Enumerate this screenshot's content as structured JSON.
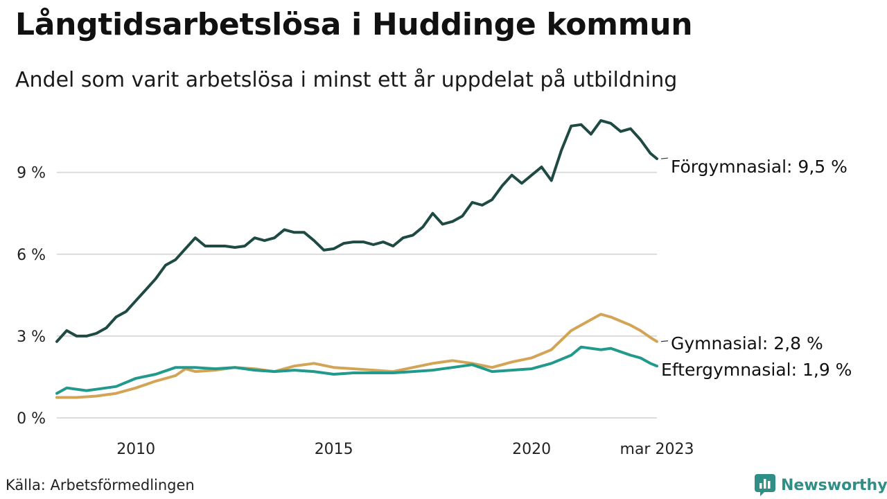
{
  "title": "Långtidsarbetslösa i Huddinge kommun",
  "subtitle": "Andel som varit arbetslösa i minst ett år uppdelat på utbildning",
  "source": "Källa: Arbetsförmedlingen",
  "brand": {
    "name": "Newsworthy",
    "icon": "newsworthy-logo-icon",
    "color": "#2f8f86"
  },
  "chart_data": {
    "type": "line",
    "x_range": [
      "2008-01",
      "2023-03"
    ],
    "ylim": [
      0,
      11
    ],
    "grid": true,
    "yticks": [
      {
        "value": 0,
        "label": "0 %"
      },
      {
        "value": 3,
        "label": "3 %"
      },
      {
        "value": 6,
        "label": "6 %"
      },
      {
        "value": 9,
        "label": "9 %"
      }
    ],
    "xticks": [
      {
        "date": "2010-01",
        "label": "2010"
      },
      {
        "date": "2015-01",
        "label": "2015"
      },
      {
        "date": "2020-01",
        "label": "2020"
      },
      {
        "date": "2023-03",
        "label": "mar 2023"
      }
    ],
    "series": [
      {
        "name": "Förgymnasial",
        "color": "#1f4a44",
        "end_label": "Förgymnasial: 9,5 %",
        "points": [
          [
            "2008-01",
            2.8
          ],
          [
            "2008-04",
            3.2
          ],
          [
            "2008-07",
            3.0
          ],
          [
            "2008-10",
            3.0
          ],
          [
            "2009-01",
            3.1
          ],
          [
            "2009-04",
            3.3
          ],
          [
            "2009-07",
            3.7
          ],
          [
            "2009-10",
            3.9
          ],
          [
            "2010-01",
            4.3
          ],
          [
            "2010-04",
            4.7
          ],
          [
            "2010-07",
            5.1
          ],
          [
            "2010-10",
            5.6
          ],
          [
            "2011-01",
            5.8
          ],
          [
            "2011-04",
            6.2
          ],
          [
            "2011-07",
            6.6
          ],
          [
            "2011-10",
            6.3
          ],
          [
            "2012-01",
            6.3
          ],
          [
            "2012-04",
            6.3
          ],
          [
            "2012-07",
            6.25
          ],
          [
            "2012-10",
            6.3
          ],
          [
            "2013-01",
            6.6
          ],
          [
            "2013-04",
            6.5
          ],
          [
            "2013-07",
            6.6
          ],
          [
            "2013-10",
            6.9
          ],
          [
            "2014-01",
            6.8
          ],
          [
            "2014-04",
            6.8
          ],
          [
            "2014-07",
            6.5
          ],
          [
            "2014-10",
            6.15
          ],
          [
            "2015-01",
            6.2
          ],
          [
            "2015-04",
            6.4
          ],
          [
            "2015-07",
            6.45
          ],
          [
            "2015-10",
            6.45
          ],
          [
            "2016-01",
            6.35
          ],
          [
            "2016-04",
            6.45
          ],
          [
            "2016-07",
            6.3
          ],
          [
            "2016-10",
            6.6
          ],
          [
            "2017-01",
            6.7
          ],
          [
            "2017-04",
            7.0
          ],
          [
            "2017-07",
            7.5
          ],
          [
            "2017-10",
            7.1
          ],
          [
            "2018-01",
            7.2
          ],
          [
            "2018-04",
            7.4
          ],
          [
            "2018-07",
            7.9
          ],
          [
            "2018-10",
            7.8
          ],
          [
            "2019-01",
            8.0
          ],
          [
            "2019-04",
            8.5
          ],
          [
            "2019-07",
            8.9
          ],
          [
            "2019-10",
            8.6
          ],
          [
            "2020-01",
            8.9
          ],
          [
            "2020-04",
            9.2
          ],
          [
            "2020-07",
            8.7
          ],
          [
            "2020-10",
            9.8
          ],
          [
            "2021-01",
            10.7
          ],
          [
            "2021-04",
            10.75
          ],
          [
            "2021-07",
            10.4
          ],
          [
            "2021-10",
            10.9
          ],
          [
            "2022-01",
            10.8
          ],
          [
            "2022-04",
            10.5
          ],
          [
            "2022-07",
            10.6
          ],
          [
            "2022-10",
            10.2
          ],
          [
            "2023-01",
            9.7
          ],
          [
            "2023-03",
            9.5
          ]
        ]
      },
      {
        "name": "Gymnasial",
        "color": "#d4a456",
        "end_label": "Gymnasial: 2,8 %",
        "points": [
          [
            "2008-01",
            0.75
          ],
          [
            "2008-07",
            0.75
          ],
          [
            "2009-01",
            0.8
          ],
          [
            "2009-07",
            0.9
          ],
          [
            "2010-01",
            1.1
          ],
          [
            "2010-07",
            1.35
          ],
          [
            "2011-01",
            1.55
          ],
          [
            "2011-04",
            1.8
          ],
          [
            "2011-07",
            1.7
          ],
          [
            "2012-01",
            1.75
          ],
          [
            "2012-07",
            1.85
          ],
          [
            "2013-01",
            1.8
          ],
          [
            "2013-07",
            1.7
          ],
          [
            "2014-01",
            1.9
          ],
          [
            "2014-07",
            2.0
          ],
          [
            "2015-01",
            1.85
          ],
          [
            "2015-07",
            1.8
          ],
          [
            "2016-01",
            1.75
          ],
          [
            "2016-07",
            1.7
          ],
          [
            "2017-01",
            1.85
          ],
          [
            "2017-07",
            2.0
          ],
          [
            "2018-01",
            2.1
          ],
          [
            "2018-07",
            2.0
          ],
          [
            "2019-01",
            1.85
          ],
          [
            "2019-07",
            2.05
          ],
          [
            "2020-01",
            2.2
          ],
          [
            "2020-07",
            2.5
          ],
          [
            "2021-01",
            3.2
          ],
          [
            "2021-07",
            3.6
          ],
          [
            "2021-10",
            3.8
          ],
          [
            "2022-01",
            3.7
          ],
          [
            "2022-07",
            3.4
          ],
          [
            "2022-10",
            3.2
          ],
          [
            "2023-01",
            2.95
          ],
          [
            "2023-03",
            2.8
          ]
        ]
      },
      {
        "name": "Eftergymnasial",
        "color": "#21998c",
        "end_label": "Eftergymnasial: 1,9 %",
        "points": [
          [
            "2008-01",
            0.9
          ],
          [
            "2008-04",
            1.1
          ],
          [
            "2008-10",
            1.0
          ],
          [
            "2009-01",
            1.05
          ],
          [
            "2009-07",
            1.15
          ],
          [
            "2010-01",
            1.45
          ],
          [
            "2010-07",
            1.6
          ],
          [
            "2011-01",
            1.85
          ],
          [
            "2011-07",
            1.85
          ],
          [
            "2012-01",
            1.8
          ],
          [
            "2012-07",
            1.85
          ],
          [
            "2013-01",
            1.75
          ],
          [
            "2013-07",
            1.7
          ],
          [
            "2014-01",
            1.75
          ],
          [
            "2014-07",
            1.7
          ],
          [
            "2015-01",
            1.6
          ],
          [
            "2015-07",
            1.65
          ],
          [
            "2016-01",
            1.65
          ],
          [
            "2016-07",
            1.65
          ],
          [
            "2017-01",
            1.7
          ],
          [
            "2017-07",
            1.75
          ],
          [
            "2018-01",
            1.85
          ],
          [
            "2018-07",
            1.95
          ],
          [
            "2019-01",
            1.7
          ],
          [
            "2019-07",
            1.75
          ],
          [
            "2020-01",
            1.8
          ],
          [
            "2020-07",
            2.0
          ],
          [
            "2021-01",
            2.3
          ],
          [
            "2021-04",
            2.6
          ],
          [
            "2021-10",
            2.5
          ],
          [
            "2022-01",
            2.55
          ],
          [
            "2022-07",
            2.3
          ],
          [
            "2022-10",
            2.2
          ],
          [
            "2023-01",
            2.0
          ],
          [
            "2023-03",
            1.9
          ]
        ]
      }
    ]
  }
}
